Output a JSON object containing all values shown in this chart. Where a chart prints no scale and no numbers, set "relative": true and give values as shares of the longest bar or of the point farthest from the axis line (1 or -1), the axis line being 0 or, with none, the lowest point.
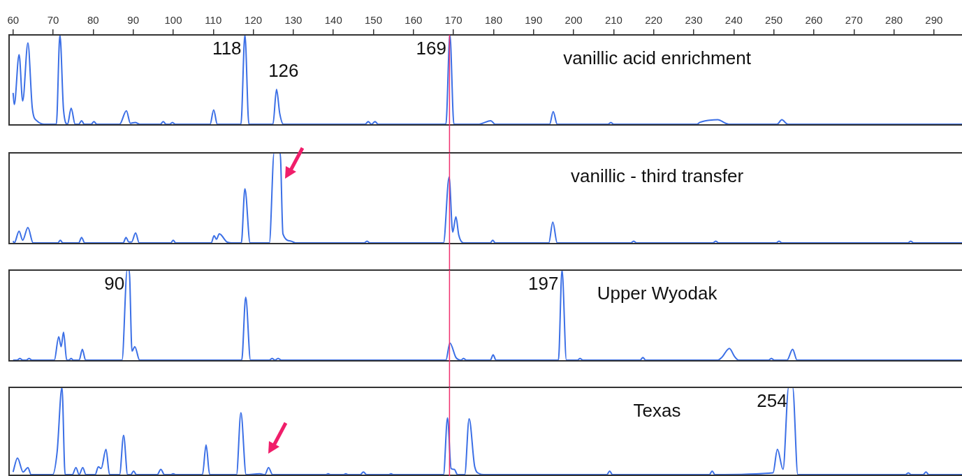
{
  "chart_data": [
    {
      "type": "line",
      "relative": true,
      "color": "#3b6fe6",
      "xlim": [
        59,
        297
      ],
      "xticks": [
        60,
        70,
        80,
        90,
        100,
        110,
        120,
        130,
        140,
        150,
        160,
        170,
        180,
        190,
        200,
        210,
        220,
        230,
        240,
        250,
        260,
        270,
        280,
        290
      ],
      "tick_labels": "x",
      "grid": false,
      "legend": false,
      "marker": "none",
      "ref_lines": [
        {
          "axis": "x",
          "value": 169,
          "color": "#f0306e"
        }
      ],
      "annotations": [
        "vanillic acid enrichment",
        {
          "text": "118",
          "x": 117.9,
          "y": 1
        },
        {
          "text": "126",
          "x": 125.8,
          "y": 0.39
        },
        {
          "text": "169",
          "x": 169.1,
          "y": 1
        }
      ],
      "x": [
        60,
        60.3,
        61.5,
        62.4,
        63.7,
        64.8,
        65.9,
        68.4,
        70.8,
        71.7,
        72.6,
        73.6,
        74.5,
        75.5,
        76.4,
        77.1,
        77.8,
        79.5,
        80.2,
        80.9,
        86.6,
        88.3,
        89.3,
        90.5,
        91.6,
        96.8,
        97.5,
        98.2,
        99.1,
        99.8,
        100.5,
        109.2,
        110.1,
        111.0,
        116.9,
        117.9,
        118.9,
        124.9,
        125.8,
        126.6,
        127.5,
        147.9,
        148.7,
        149.5,
        150.4,
        151.2,
        168.1,
        169.1,
        170.1,
        176.4,
        177.2,
        179.3,
        180.4,
        194.0,
        194.9,
        195.9,
        208.6,
        209.3,
        210.0,
        230.8,
        231.5,
        236.0,
        238.0,
        238.8,
        250.8,
        252.0,
        253.5,
        297
      ],
      "values": [
        0.35,
        0.22,
        0.78,
        0.26,
        0.91,
        0.18,
        0.04,
        0,
        0,
        1,
        0.16,
        0,
        0.18,
        0,
        0,
        0.04,
        0,
        0,
        0.03,
        0,
        0,
        0.15,
        0.01,
        0.02,
        0,
        0,
        0.03,
        0,
        0,
        0.02,
        0,
        0,
        0.16,
        0,
        0,
        1,
        0,
        0,
        0.39,
        0.12,
        0,
        0,
        0.03,
        0,
        0.03,
        0,
        0,
        1,
        0,
        0,
        0.01,
        0.04,
        0,
        0,
        0.14,
        0,
        0,
        0.02,
        0,
        0,
        0.02,
        0.05,
        0.01,
        0,
        0,
        0.05,
        0,
        0
      ]
    },
    {
      "type": "line",
      "relative": true,
      "color": "#3b6fe6",
      "xlim": [
        59,
        297
      ],
      "tick_labels": false,
      "grid": false,
      "legend": false,
      "marker": "none",
      "ref_lines": [
        {
          "axis": "x",
          "value": 169,
          "color": "#f0306e"
        }
      ],
      "annotations": [
        "vanillic - third transfer"
      ],
      "x": [
        60,
        60.3,
        61.5,
        62.4,
        63.7,
        65.0,
        71.2,
        71.8,
        72.4,
        76.4,
        77.1,
        77.9,
        87.5,
        88.2,
        88.9,
        89.6,
        90.6,
        91.5,
        99.4,
        100,
        100.6,
        109.5,
        110.2,
        110.8,
        111.5,
        113.4,
        114.5,
        117.0,
        117.9,
        119.2,
        124.0,
        125.2,
        126.7,
        127.4,
        129.4,
        130.5,
        147.7,
        148.4,
        149.1,
        167.5,
        168.9,
        169.8,
        170.6,
        171.3,
        172.5,
        179.2,
        179.8,
        180.4,
        193.8,
        194.8,
        195.9,
        214.3,
        215.0,
        215.7,
        234.8,
        235.5,
        236.2,
        250.6,
        251.3,
        252.0,
        283.5,
        284.2,
        284.9,
        297
      ],
      "values": [
        0.02,
        0,
        0.13,
        0.03,
        0.17,
        0,
        0,
        0.03,
        0,
        0,
        0.06,
        0,
        0,
        0.06,
        0.01,
        0.01,
        0.11,
        0,
        0,
        0.03,
        0,
        0,
        0.08,
        0.04,
        0.1,
        0.01,
        0,
        0,
        0.6,
        0,
        0,
        1,
        1,
        0.1,
        0.02,
        0,
        0,
        0.02,
        0,
        0,
        0.73,
        0.12,
        0.29,
        0.09,
        0,
        0,
        0.03,
        0,
        0,
        0.23,
        0,
        0,
        0.02,
        0,
        0,
        0.02,
        0,
        0,
        0.02,
        0,
        0,
        0.02,
        0,
        0
      ]
    },
    {
      "type": "line",
      "relative": true,
      "color": "#3b6fe6",
      "xlim": [
        59,
        297
      ],
      "tick_labels": false,
      "grid": false,
      "legend": false,
      "marker": "none",
      "ref_lines": [
        {
          "axis": "x",
          "value": 169,
          "color": "#f0306e"
        }
      ],
      "annotations": [
        "Upper Wyodak",
        {
          "text": "90",
          "x": 88.7,
          "y": 1
        },
        {
          "text": "197",
          "x": 197.1,
          "y": 1
        }
      ],
      "x": [
        60,
        61.0,
        61.7,
        62.4,
        63.3,
        64.0,
        64.7,
        70.3,
        71.4,
        72.0,
        72.6,
        73.4,
        74.0,
        74.5,
        75.0,
        76.5,
        77.3,
        78.1,
        87.2,
        88.5,
        89.0,
        89.7,
        90.4,
        91.6,
        117.1,
        118.1,
        119.3,
        124.0,
        124.7,
        125.4,
        126.2,
        127.0,
        168.1,
        169.1,
        170.6,
        171.9,
        172.5,
        173.2,
        179.2,
        179.9,
        180.6,
        196.2,
        197.1,
        198.2,
        201.0,
        201.6,
        202.3,
        216.6,
        217.3,
        218.0,
        236.0,
        237.0,
        238.9,
        240.2,
        241.2,
        248.7,
        249.4,
        250.1,
        253.3,
        254.7,
        255.8,
        297
      ],
      "values": [
        0,
        0,
        0.02,
        0,
        0,
        0.02,
        0,
        0,
        0.26,
        0.15,
        0.31,
        0,
        0,
        0.02,
        0,
        0,
        0.12,
        0,
        0,
        1,
        1,
        0.1,
        0.15,
        0,
        0,
        0.7,
        0,
        0,
        0.02,
        0,
        0.02,
        0,
        0,
        0.19,
        0.03,
        0,
        0.02,
        0,
        0,
        0.06,
        0,
        0,
        1,
        0,
        0,
        0.02,
        0,
        0,
        0.03,
        0,
        0,
        0.03,
        0.13,
        0.04,
        0,
        0,
        0.02,
        0,
        0,
        0.12,
        0,
        0
      ]
    },
    {
      "type": "line",
      "relative": true,
      "color": "#3b6fe6",
      "xlim": [
        59,
        297
      ],
      "tick_labels": false,
      "grid": false,
      "legend": false,
      "marker": "none",
      "ref_lines": [
        {
          "axis": "x",
          "value": 169,
          "color": "#f0306e"
        }
      ],
      "annotations": [
        "Texas",
        {
          "text": "254",
          "x": 254.2,
          "y": 1
        }
      ],
      "x": [
        60,
        61.1,
        62.5,
        63.7,
        64.5,
        69.9,
        71.0,
        72.2,
        73.0,
        74.8,
        75.7,
        76.5,
        77.4,
        78.2,
        80.5,
        81.3,
        82.0,
        83.2,
        84.1,
        86.6,
        87.6,
        88.6,
        89.4,
        90.1,
        90.8,
        96.0,
        96.9,
        97.8,
        99.4,
        100.0,
        100.6,
        107.3,
        108.2,
        109.1,
        115.8,
        116.9,
        118.2,
        121.6,
        122.9,
        123.8,
        124.8,
        138.2,
        138.7,
        139.2,
        142.6,
        143.1,
        143.6,
        146.7,
        147.5,
        148.3,
        153.9,
        154.4,
        154.9,
        167.5,
        168.5,
        169.4,
        170.2,
        171.0,
        172.8,
        173.9,
        175.3,
        176.5,
        177.5,
        208.3,
        209.0,
        209.7,
        233.9,
        234.6,
        235.3,
        249.8,
        250.9,
        252.3,
        253.7,
        254.7,
        256.0,
        282.9,
        283.6,
        284.3,
        287.3,
        288.0,
        288.7,
        297
      ],
      "values": [
        0.03,
        0.19,
        0.03,
        0.08,
        0,
        0,
        0.26,
        1,
        0,
        0,
        0.08,
        0,
        0.08,
        0,
        0,
        0.09,
        0.07,
        0.29,
        0,
        0,
        0.45,
        0,
        0,
        0.04,
        0,
        0,
        0.06,
        0,
        0,
        0.01,
        0,
        0,
        0.34,
        0,
        0,
        0.71,
        0,
        0.01,
        0,
        0.08,
        0,
        0,
        0.01,
        0,
        0,
        0.01,
        0,
        0,
        0.03,
        0,
        0,
        0.01,
        0,
        0,
        0.65,
        0.07,
        0.06,
        0,
        0,
        0.64,
        0.09,
        0.01,
        0,
        0,
        0.04,
        0,
        0,
        0.04,
        0,
        0.02,
        0.29,
        0.06,
        1,
        1,
        0,
        0,
        0.02,
        0,
        0,
        0.03,
        0,
        0
      ]
    }
  ]
}
